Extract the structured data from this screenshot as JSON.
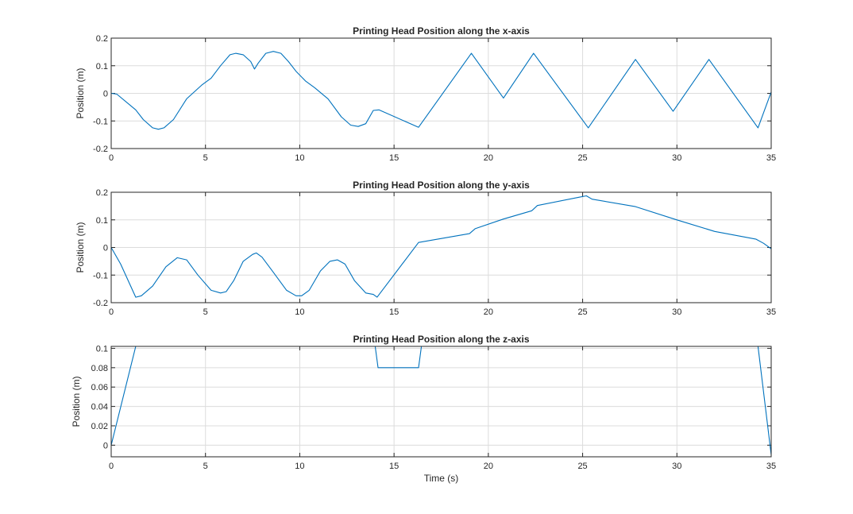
{
  "colors": {
    "line": "#0072BD",
    "grid": "#dcdcdc",
    "axis": "#262626"
  },
  "chart_data": [
    {
      "type": "line",
      "title": "Printing Head Position along the x-axis",
      "xlabel": "",
      "ylabel": "Position (m)",
      "xlim": [
        0,
        35
      ],
      "ylim": [
        -0.2,
        0.2
      ],
      "xticks": [
        0,
        5,
        10,
        15,
        20,
        25,
        30,
        35
      ],
      "yticks": [
        -0.2,
        -0.1,
        0,
        0.1,
        0.2
      ],
      "yticklabels": [
        "-0.2",
        "-0.1",
        "0",
        "0.1",
        "0.2"
      ],
      "grid": true,
      "series": [
        {
          "x": [
            0,
            0.3,
            1.3,
            1.7,
            2.2,
            2.5,
            2.8,
            3.3,
            4.0,
            4.8,
            5.3,
            5.8,
            6.3,
            6.6,
            7.0,
            7.4,
            7.6,
            7.8,
            8.2,
            8.6,
            9.0,
            9.4,
            9.8,
            10.3,
            10.8,
            11.5,
            12.2,
            12.7,
            13.1,
            13.5,
            13.9,
            14.2,
            16.3,
            19.1,
            20.8,
            22.4,
            25.3,
            27.8,
            29.8,
            31.7,
            34.3,
            35
          ],
          "y": [
            0,
            -0.003,
            -0.06,
            -0.095,
            -0.125,
            -0.13,
            -0.125,
            -0.095,
            -0.02,
            0.03,
            0.055,
            0.1,
            0.14,
            0.145,
            0.14,
            0.115,
            0.088,
            0.11,
            0.145,
            0.152,
            0.145,
            0.115,
            0.08,
            0.045,
            0.02,
            -0.02,
            -0.085,
            -0.115,
            -0.12,
            -0.11,
            -0.062,
            -0.06,
            -0.123,
            0.145,
            -0.017,
            0.145,
            -0.125,
            0.123,
            -0.065,
            0.123,
            -0.125,
            0.005
          ]
        }
      ]
    },
    {
      "type": "line",
      "title": "Printing Head Position along the y-axis",
      "xlabel": "",
      "ylabel": "Position (m)",
      "xlim": [
        0,
        35
      ],
      "ylim": [
        -0.2,
        0.2
      ],
      "xticks": [
        0,
        5,
        10,
        15,
        20,
        25,
        30,
        35
      ],
      "yticks": [
        -0.2,
        -0.1,
        0,
        0.1,
        0.2
      ],
      "yticklabels": [
        "-0.2",
        "-0.1",
        "0",
        "0.1",
        "0.2"
      ],
      "grid": true,
      "series": [
        {
          "x": [
            0,
            0.5,
            1.3,
            1.6,
            2.2,
            2.9,
            3.5,
            4.0,
            4.6,
            5.3,
            5.8,
            6.1,
            6.5,
            7.0,
            7.5,
            7.7,
            8.0,
            8.6,
            9.3,
            9.8,
            10.1,
            10.5,
            11.1,
            11.6,
            12.0,
            12.4,
            12.9,
            13.5,
            13.9,
            14.1,
            16.3,
            19.0,
            19.3,
            20.8,
            22.3,
            22.6,
            24.8,
            25.2,
            25.5,
            27.8,
            30.0,
            32.0,
            34.2,
            34.6,
            35.0
          ],
          "y": [
            0,
            -0.06,
            -0.18,
            -0.175,
            -0.14,
            -0.07,
            -0.037,
            -0.045,
            -0.1,
            -0.155,
            -0.165,
            -0.16,
            -0.12,
            -0.05,
            -0.025,
            -0.02,
            -0.035,
            -0.09,
            -0.155,
            -0.175,
            -0.175,
            -0.155,
            -0.085,
            -0.05,
            -0.045,
            -0.06,
            -0.12,
            -0.165,
            -0.17,
            -0.18,
            0.018,
            0.05,
            0.068,
            0.103,
            0.133,
            0.152,
            0.182,
            0.187,
            0.175,
            0.148,
            0.1,
            0.058,
            0.03,
            0.015,
            -0.005
          ]
        }
      ]
    },
    {
      "type": "line",
      "title": "Printing Head Position along the z-axis",
      "xlabel": "Time (s)",
      "ylabel": "Position (m)",
      "xlim": [
        0,
        35
      ],
      "ylim": [
        -0.012,
        0.102
      ],
      "xticks": [
        0,
        5,
        10,
        15,
        20,
        25,
        30,
        35
      ],
      "yticks": [
        0,
        0.02,
        0.04,
        0.06,
        0.08,
        0.1
      ],
      "yticklabels": [
        "0",
        "0.02",
        "0.04",
        "0.06",
        "0.08",
        "0.1"
      ],
      "grid": true,
      "series": [
        {
          "x": [
            0,
            1.3,
            14.0,
            14.15,
            16.3,
            16.45,
            34.3,
            35.0
          ],
          "y": [
            0,
            0.102,
            0.102,
            0.08,
            0.08,
            0.102,
            0.102,
            -0.01
          ]
        }
      ]
    }
  ]
}
